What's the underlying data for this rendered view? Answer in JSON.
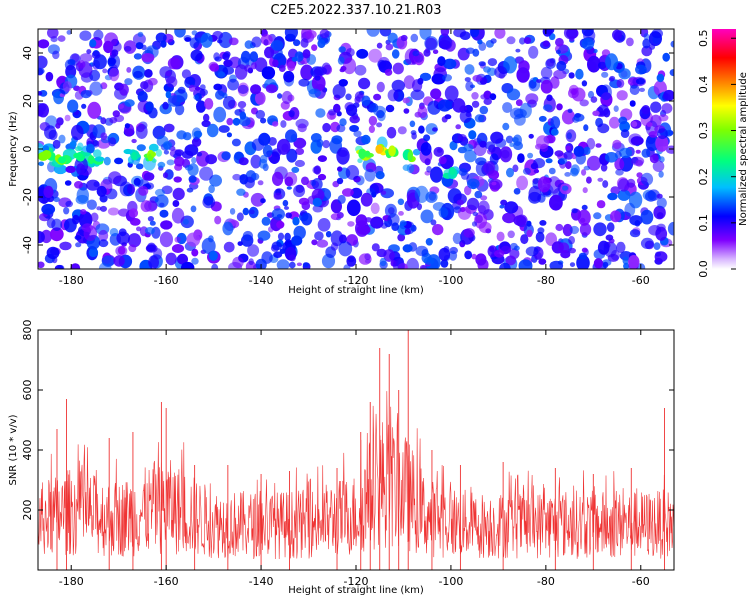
{
  "figure": {
    "title": "C2E5.2022.337.10.21.R03"
  },
  "chart_data": [
    {
      "type": "heatmap",
      "xlabel": "Height of straight line (km)",
      "ylabel": "Frequency (Hz)",
      "xlim": [
        -187,
        -53
      ],
      "ylim": [
        -50,
        50
      ],
      "xticks": [
        -180,
        -160,
        -140,
        -120,
        -100,
        -80,
        -60
      ],
      "yticks": [
        -40,
        -20,
        0,
        20,
        40
      ],
      "colorbar": {
        "label": "Normalized spectral amplitude",
        "range": [
          0.0,
          0.52
        ],
        "ticks": [
          0.0,
          0.1,
          0.2,
          0.3,
          0.4,
          0.5
        ],
        "colormap": [
          "#ffffff",
          "#7f00ff",
          "#0000ff",
          "#00bfff",
          "#00ff7f",
          "#7fff00",
          "#ffff00",
          "#ff7f00",
          "#ff0000",
          "#ff00bf"
        ]
      },
      "background_level": 0.05,
      "hotspots": [
        {
          "x": -185,
          "y": -3,
          "amplitude": 0.25
        },
        {
          "x": -182,
          "y": -4,
          "amplitude": 0.22
        },
        {
          "x": -178,
          "y": -2,
          "amplitude": 0.18
        },
        {
          "x": -175,
          "y": -5,
          "amplitude": 0.15
        },
        {
          "x": -163,
          "y": -3,
          "amplitude": 0.24
        },
        {
          "x": -167,
          "y": -2,
          "amplitude": 0.14
        },
        {
          "x": -118,
          "y": -2,
          "amplitude": 0.28
        },
        {
          "x": -115,
          "y": -1,
          "amplitude": 0.35
        },
        {
          "x": -112,
          "y": -2,
          "amplitude": 0.26
        },
        {
          "x": -109,
          "y": -3,
          "amplitude": 0.22
        },
        {
          "x": -100,
          "y": -10,
          "amplitude": 0.12
        }
      ]
    },
    {
      "type": "line",
      "xlabel": "Height of straight line (km)",
      "ylabel": "SNR (10 * v/v)",
      "xlim": [
        -187,
        -53
      ],
      "ylim": [
        0,
        800
      ],
      "xticks": [
        -180,
        -160,
        -140,
        -120,
        -100,
        -80,
        -60
      ],
      "yticks": [
        200,
        400,
        600,
        800
      ],
      "color": "#ef3333",
      "grid": false,
      "peaks": [
        {
          "x": -183,
          "y": 470
        },
        {
          "x": -181,
          "y": 570
        },
        {
          "x": -172,
          "y": 440
        },
        {
          "x": -167,
          "y": 460
        },
        {
          "x": -161,
          "y": 560
        },
        {
          "x": -160,
          "y": 540
        },
        {
          "x": -154,
          "y": 350
        },
        {
          "x": -147,
          "y": 350
        },
        {
          "x": -140,
          "y": 320
        },
        {
          "x": -134,
          "y": 330
        },
        {
          "x": -124,
          "y": 340
        },
        {
          "x": -119,
          "y": 460
        },
        {
          "x": -117,
          "y": 560
        },
        {
          "x": -115,
          "y": 740
        },
        {
          "x": -113,
          "y": 720
        },
        {
          "x": -111,
          "y": 600
        },
        {
          "x": -109,
          "y": 800
        },
        {
          "x": -104,
          "y": 400
        },
        {
          "x": -98,
          "y": 350
        },
        {
          "x": -89,
          "y": 360
        },
        {
          "x": -78,
          "y": 340
        },
        {
          "x": -70,
          "y": 320
        },
        {
          "x": -62,
          "y": 340
        },
        {
          "x": -55,
          "y": 540
        },
        {
          "x": -53,
          "y": 480
        }
      ],
      "envelope": [
        {
          "x": -187,
          "mean": 160
        },
        {
          "x": -180,
          "mean": 190
        },
        {
          "x": -170,
          "mean": 165
        },
        {
          "x": -160,
          "mean": 210
        },
        {
          "x": -150,
          "mean": 150
        },
        {
          "x": -140,
          "mean": 145
        },
        {
          "x": -130,
          "mean": 150
        },
        {
          "x": -120,
          "mean": 180
        },
        {
          "x": -115,
          "mean": 290
        },
        {
          "x": -110,
          "mean": 260
        },
        {
          "x": -105,
          "mean": 170
        },
        {
          "x": -95,
          "mean": 145
        },
        {
          "x": -85,
          "mean": 145
        },
        {
          "x": -75,
          "mean": 150
        },
        {
          "x": -65,
          "mean": 145
        },
        {
          "x": -53,
          "mean": 150
        }
      ]
    }
  ]
}
